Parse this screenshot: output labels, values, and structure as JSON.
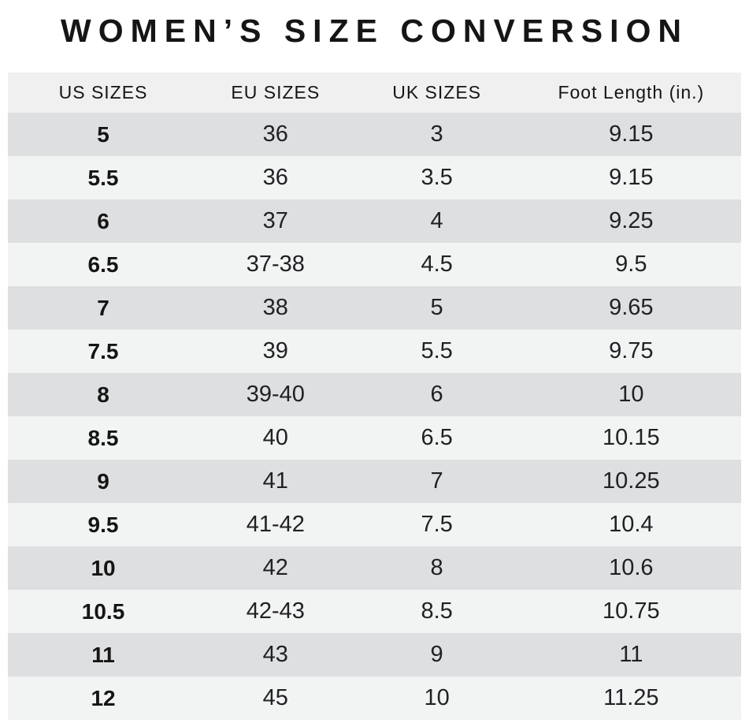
{
  "chart_data": {
    "type": "table",
    "title": "WOMEN’S SIZE CONVERSION",
    "columns": [
      "US SIZES",
      "EU SIZES",
      "UK SIZES",
      "Foot Length (in.)"
    ],
    "rows": [
      [
        "5",
        "36",
        "3",
        "9.15"
      ],
      [
        "5.5",
        "36",
        "3.5",
        "9.15"
      ],
      [
        "6",
        "37",
        "4",
        "9.25"
      ],
      [
        "6.5",
        "37-38",
        "4.5",
        "9.5"
      ],
      [
        "7",
        "38",
        "5",
        "9.65"
      ],
      [
        "7.5",
        "39",
        "5.5",
        "9.75"
      ],
      [
        "8",
        "39-40",
        "6",
        "10"
      ],
      [
        "8.5",
        "40",
        "6.5",
        "10.15"
      ],
      [
        "9",
        "41",
        "7",
        "10.25"
      ],
      [
        "9.5",
        "41-42",
        "7.5",
        "10.4"
      ],
      [
        "10",
        "42",
        "8",
        "10.6"
      ],
      [
        "10.5",
        "42-43",
        "8.5",
        "10.75"
      ],
      [
        "11",
        "43",
        "9",
        "11"
      ],
      [
        "12",
        "45",
        "10",
        "11.25"
      ]
    ]
  },
  "colors": {
    "title_text": "#151515",
    "text": "#212125",
    "header_bg": "#f0f0f0",
    "row_dark": "#dedfe1",
    "row_light": "#f2f3f3",
    "page_bg": "#ffffff"
  }
}
